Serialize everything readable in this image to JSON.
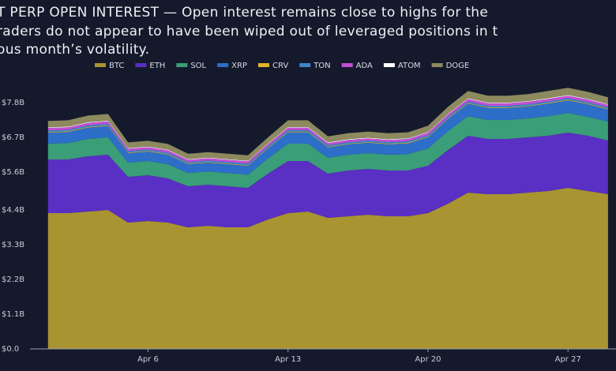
{
  "chart_data": {
    "type": "stacked-area",
    "title_lines": [
      "T PERP OPEN INTEREST — Open interest remains close to highs for the",
      "raders do not appear to have been wiped out of leveraged positions in t",
      "ous month’s volatility."
    ],
    "x": [
      1,
      2,
      3,
      4,
      5,
      6,
      7,
      8,
      9,
      10,
      11,
      12,
      13,
      14,
      15,
      16,
      17,
      18,
      19,
      20,
      21,
      22,
      23,
      24,
      25,
      26,
      27,
      28,
      29
    ],
    "xlim": [
      0.1,
      29.4
    ],
    "xticks": [
      {
        "value": 6,
        "label": "Apr 6"
      },
      {
        "value": 13,
        "label": "Apr 13"
      },
      {
        "value": 20,
        "label": "Apr 20"
      },
      {
        "value": 27,
        "label": "Apr 27"
      }
    ],
    "ylim": [
      0,
      8.7
    ],
    "yticks": [
      {
        "value": 0,
        "label": "$0.0"
      },
      {
        "value": 1.1,
        "label": "$1.1B"
      },
      {
        "value": 2.2,
        "label": "$2.2B"
      },
      {
        "value": 3.3,
        "label": "$3.3B"
      },
      {
        "value": 4.4,
        "label": "$4.4B"
      },
      {
        "value": 5.6,
        "label": "$5.6B"
      },
      {
        "value": 6.7,
        "label": "$6.7B"
      },
      {
        "value": 7.8,
        "label": "$7.8B"
      }
    ],
    "grid": false,
    "series": [
      {
        "name": "BTC",
        "color": "#a99432",
        "values": [
          4.3,
          4.3,
          4.35,
          4.4,
          4.0,
          4.05,
          4.0,
          3.85,
          3.9,
          3.85,
          3.85,
          4.1,
          4.3,
          4.35,
          4.15,
          4.2,
          4.25,
          4.2,
          4.2,
          4.3,
          4.6,
          4.95,
          4.9,
          4.9,
          4.95,
          5.0,
          5.1,
          5.0,
          4.9
        ]
      },
      {
        "name": "ETH",
        "color": "#5a2fc4",
        "values": [
          1.7,
          1.7,
          1.75,
          1.75,
          1.45,
          1.45,
          1.4,
          1.3,
          1.3,
          1.3,
          1.25,
          1.45,
          1.65,
          1.6,
          1.4,
          1.45,
          1.45,
          1.45,
          1.45,
          1.5,
          1.7,
          1.8,
          1.75,
          1.75,
          1.75,
          1.75,
          1.75,
          1.75,
          1.7
        ]
      },
      {
        "name": "SOL",
        "color": "#3a9e78",
        "values": [
          0.5,
          0.52,
          0.55,
          0.55,
          0.45,
          0.45,
          0.45,
          0.42,
          0.42,
          0.42,
          0.42,
          0.48,
          0.55,
          0.55,
          0.5,
          0.5,
          0.5,
          0.5,
          0.52,
          0.55,
          0.6,
          0.62,
          0.6,
          0.6,
          0.6,
          0.62,
          0.62,
          0.6,
          0.6
        ]
      },
      {
        "name": "XRP",
        "color": "#2d6ec8",
        "values": [
          0.35,
          0.35,
          0.36,
          0.36,
          0.3,
          0.3,
          0.3,
          0.28,
          0.28,
          0.28,
          0.28,
          0.32,
          0.36,
          0.36,
          0.33,
          0.33,
          0.33,
          0.33,
          0.34,
          0.35,
          0.38,
          0.4,
          0.38,
          0.38,
          0.38,
          0.4,
          0.4,
          0.4,
          0.38
        ]
      },
      {
        "name": "CRV",
        "color": "#e4b52a",
        "values": [
          0.02,
          0.02,
          0.02,
          0.02,
          0.02,
          0.02,
          0.02,
          0.02,
          0.02,
          0.02,
          0.02,
          0.02,
          0.02,
          0.02,
          0.02,
          0.02,
          0.02,
          0.02,
          0.02,
          0.02,
          0.02,
          0.02,
          0.02,
          0.02,
          0.02,
          0.02,
          0.02,
          0.02,
          0.02
        ]
      },
      {
        "name": "TON",
        "color": "#3c86cc",
        "values": [
          0.05,
          0.05,
          0.05,
          0.05,
          0.05,
          0.05,
          0.05,
          0.05,
          0.05,
          0.05,
          0.05,
          0.05,
          0.05,
          0.05,
          0.05,
          0.05,
          0.05,
          0.05,
          0.05,
          0.05,
          0.05,
          0.05,
          0.05,
          0.05,
          0.05,
          0.05,
          0.05,
          0.05,
          0.05
        ]
      },
      {
        "name": "ADA",
        "color": "#c24fd3",
        "values": [
          0.08,
          0.08,
          0.08,
          0.08,
          0.07,
          0.07,
          0.07,
          0.07,
          0.07,
          0.07,
          0.07,
          0.07,
          0.08,
          0.08,
          0.07,
          0.07,
          0.07,
          0.07,
          0.07,
          0.08,
          0.08,
          0.08,
          0.08,
          0.08,
          0.08,
          0.08,
          0.08,
          0.08,
          0.08
        ]
      },
      {
        "name": "ATOM",
        "color": "#ffffff",
        "values": [
          0.02,
          0.02,
          0.02,
          0.02,
          0.02,
          0.02,
          0.02,
          0.02,
          0.02,
          0.02,
          0.02,
          0.02,
          0.02,
          0.02,
          0.02,
          0.02,
          0.02,
          0.02,
          0.02,
          0.02,
          0.02,
          0.02,
          0.02,
          0.02,
          0.02,
          0.02,
          0.02,
          0.02,
          0.02
        ]
      },
      {
        "name": "DOGE",
        "color": "#8c8a5e",
        "values": [
          0.2,
          0.2,
          0.21,
          0.21,
          0.18,
          0.18,
          0.18,
          0.17,
          0.17,
          0.17,
          0.17,
          0.19,
          0.21,
          0.21,
          0.19,
          0.19,
          0.19,
          0.19,
          0.19,
          0.2,
          0.22,
          0.23,
          0.22,
          0.22,
          0.22,
          0.23,
          0.23,
          0.22,
          0.22
        ]
      }
    ]
  }
}
